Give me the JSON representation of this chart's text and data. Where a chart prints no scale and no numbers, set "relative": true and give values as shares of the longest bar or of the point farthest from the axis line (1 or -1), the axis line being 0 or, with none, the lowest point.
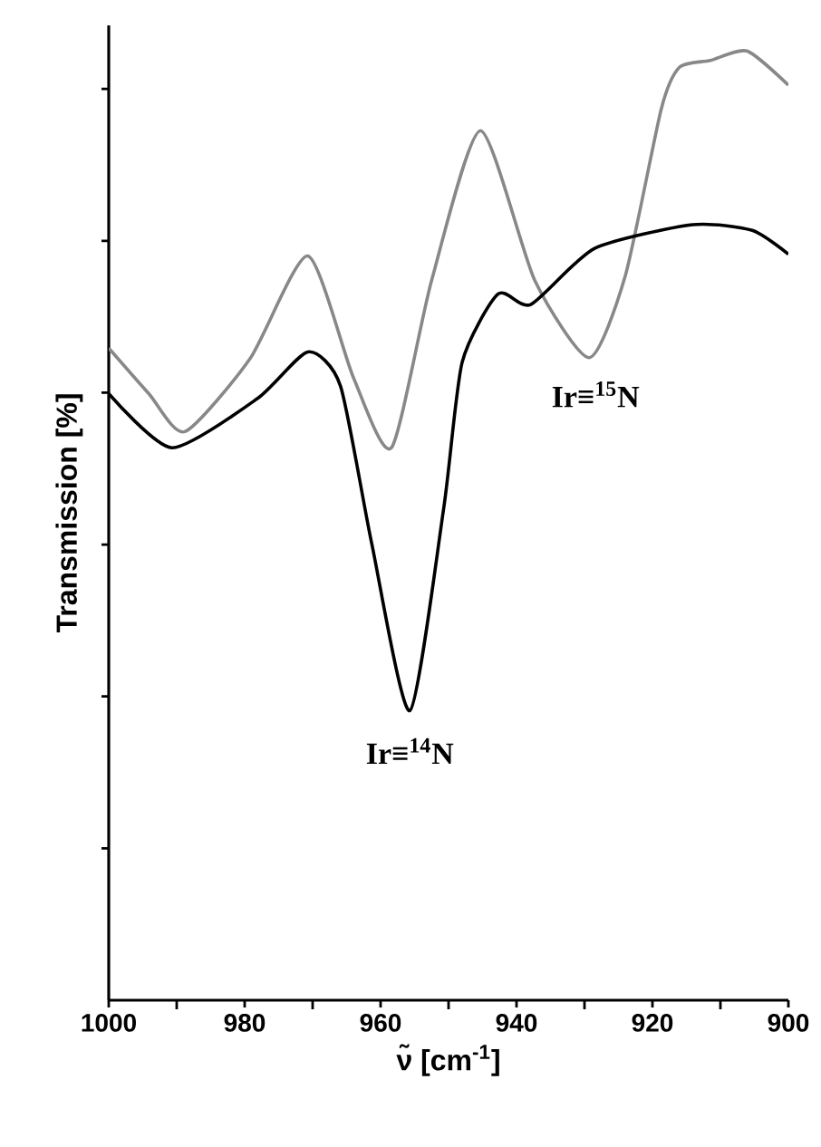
{
  "chart_data": {
    "type": "line",
    "relative": true,
    "xlabel": "ν̃ [cm$^{-1}$]",
    "ylabel": "Transmission [%]",
    "xlim": [
      1000,
      900
    ],
    "xticks": [
      1000,
      980,
      960,
      940,
      920,
      900
    ],
    "marker": "none",
    "line_style": "solid",
    "series": [
      {
        "color": "#888888",
        "x": [
          1000,
          994.1,
          988.8,
          979.2,
          970.7,
          964,
          958.4,
          952.5,
          945.3,
          937.3,
          929.3,
          924,
          918.7,
          916,
          911.5,
          906.1,
          900
        ],
        "values": [
          0.687,
          0.639,
          0.599,
          0.676,
          0.784,
          0.656,
          0.582,
          0.758,
          0.916,
          0.758,
          0.677,
          0.763,
          0.939,
          0.983,
          0.99,
          1.0,
          0.964
        ]
      },
      {
        "color": "#000000",
        "x": [
          1000,
          990.7,
          978.1,
          970.7,
          965.9,
          961.3,
          955.7,
          950.7,
          948,
          942.7,
          937.9,
          928.5,
          914.1,
          905.3,
          900
        ],
        "values": [
          0.639,
          0.582,
          0.634,
          0.683,
          0.647,
          0.481,
          0.305,
          0.519,
          0.672,
          0.744,
          0.733,
          0.792,
          0.817,
          0.811,
          0.786
        ]
      }
    ],
    "annotations": [
      {
        "text": "Ir≡$^{15}$N",
        "x": 929.3,
        "y": 0.677
      },
      {
        "text": "Ir≡$^{14}$N",
        "x": 955.7,
        "y": 0.305
      }
    ]
  }
}
